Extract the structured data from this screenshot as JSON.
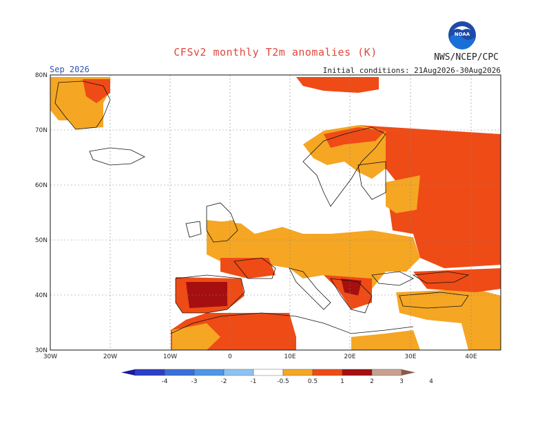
{
  "title": "CFSv2 monthly T2m anomalies (K)",
  "agency": "NWS/NCEP/CPC",
  "logo_text": "NOAA",
  "month": "Sep 2026",
  "initial_conditions": "Initial conditions: 21Aug2026-30Aug2026",
  "lat_labels": [
    "80N",
    "70N",
    "60N",
    "50N",
    "40N",
    "30N"
  ],
  "lon_labels": [
    "30W",
    "20W",
    "10W",
    "0",
    "10E",
    "20E",
    "30E",
    "40E"
  ],
  "colorbar": {
    "levels": [
      "-4",
      "-3",
      "-2",
      "-1",
      "-0.5",
      "0.5",
      "1",
      "2",
      "3",
      "4"
    ],
    "colors": [
      "#1a1aa0",
      "#2b3fc6",
      "#3b6fd8",
      "#4d96e8",
      "#8cc3f2",
      "#ffffff",
      "#f5a623",
      "#ef4b16",
      "#a50f0f",
      "#c8a090",
      "#8b5a4a"
    ]
  },
  "anomaly_colors": {
    "weak": "#f5a623",
    "moderate": "#ef4b16",
    "strong": "#a50f0f"
  }
}
